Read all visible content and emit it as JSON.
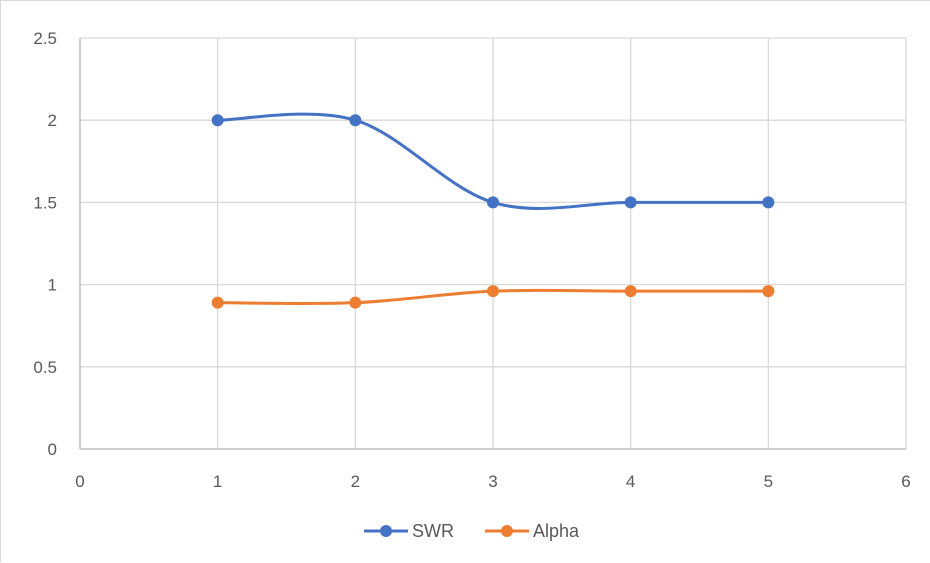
{
  "chart_data": {
    "type": "scatter",
    "line_style": "smooth",
    "title": "",
    "xlabel": "",
    "ylabel": "",
    "xlim": [
      0,
      6
    ],
    "ylim": [
      0,
      2.5
    ],
    "x_ticks": [
      "0",
      "1",
      "2",
      "3",
      "4",
      "5",
      "6"
    ],
    "y_ticks": [
      "0",
      "0.5",
      "1",
      "1.5",
      "2",
      "2.5"
    ],
    "grid": true,
    "legend_position": "bottom",
    "series": [
      {
        "name": "SWR",
        "color": "#4472C4",
        "x": [
          1,
          2,
          3,
          4,
          5
        ],
        "y": [
          2,
          2,
          1.5,
          1.5,
          1.5
        ]
      },
      {
        "name": "Alpha",
        "color": "#ED7D31",
        "x": [
          1,
          2,
          3,
          4,
          5
        ],
        "y": [
          0.89,
          0.89,
          0.96,
          0.96,
          0.96
        ]
      }
    ]
  }
}
